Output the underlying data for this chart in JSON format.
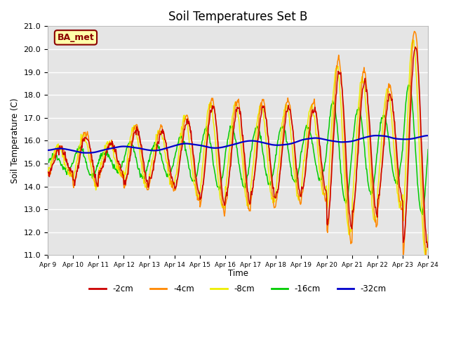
{
  "title": "Soil Temperatures Set B",
  "ylabel": "Soil Temperature (C)",
  "xlabel": "Time",
  "ylim": [
    11.0,
    21.0
  ],
  "yticks": [
    11.0,
    12.0,
    13.0,
    14.0,
    15.0,
    16.0,
    17.0,
    18.0,
    19.0,
    20.0,
    21.0
  ],
  "xtick_labels": [
    "Apr 9",
    "Apr 10",
    "Apr 11",
    "Apr 12",
    "Apr 13",
    "Apr 14",
    "Apr 15",
    "Apr 16",
    "Apr 17",
    "Apr 18",
    "Apr 19",
    "Apr 20",
    "Apr 21",
    "Apr 22",
    "Apr 23",
    "Apr 24"
  ],
  "colors": {
    "-2cm": "#cc0000",
    "-4cm": "#ff8800",
    "-8cm": "#eeee00",
    "-16cm": "#00cc00",
    "-32cm": "#0000cc"
  },
  "legend_labels": [
    "-2cm",
    "-4cm",
    "-8cm",
    "-16cm",
    "-32cm"
  ],
  "annotation": "BA_met",
  "annotation_bbox": {
    "facecolor": "#ffffaa",
    "edgecolor": "#8B0000",
    "linewidth": 1.5
  },
  "background_color": "#e5e5e5",
  "title_fontsize": 12,
  "axis_fontsize": 9
}
